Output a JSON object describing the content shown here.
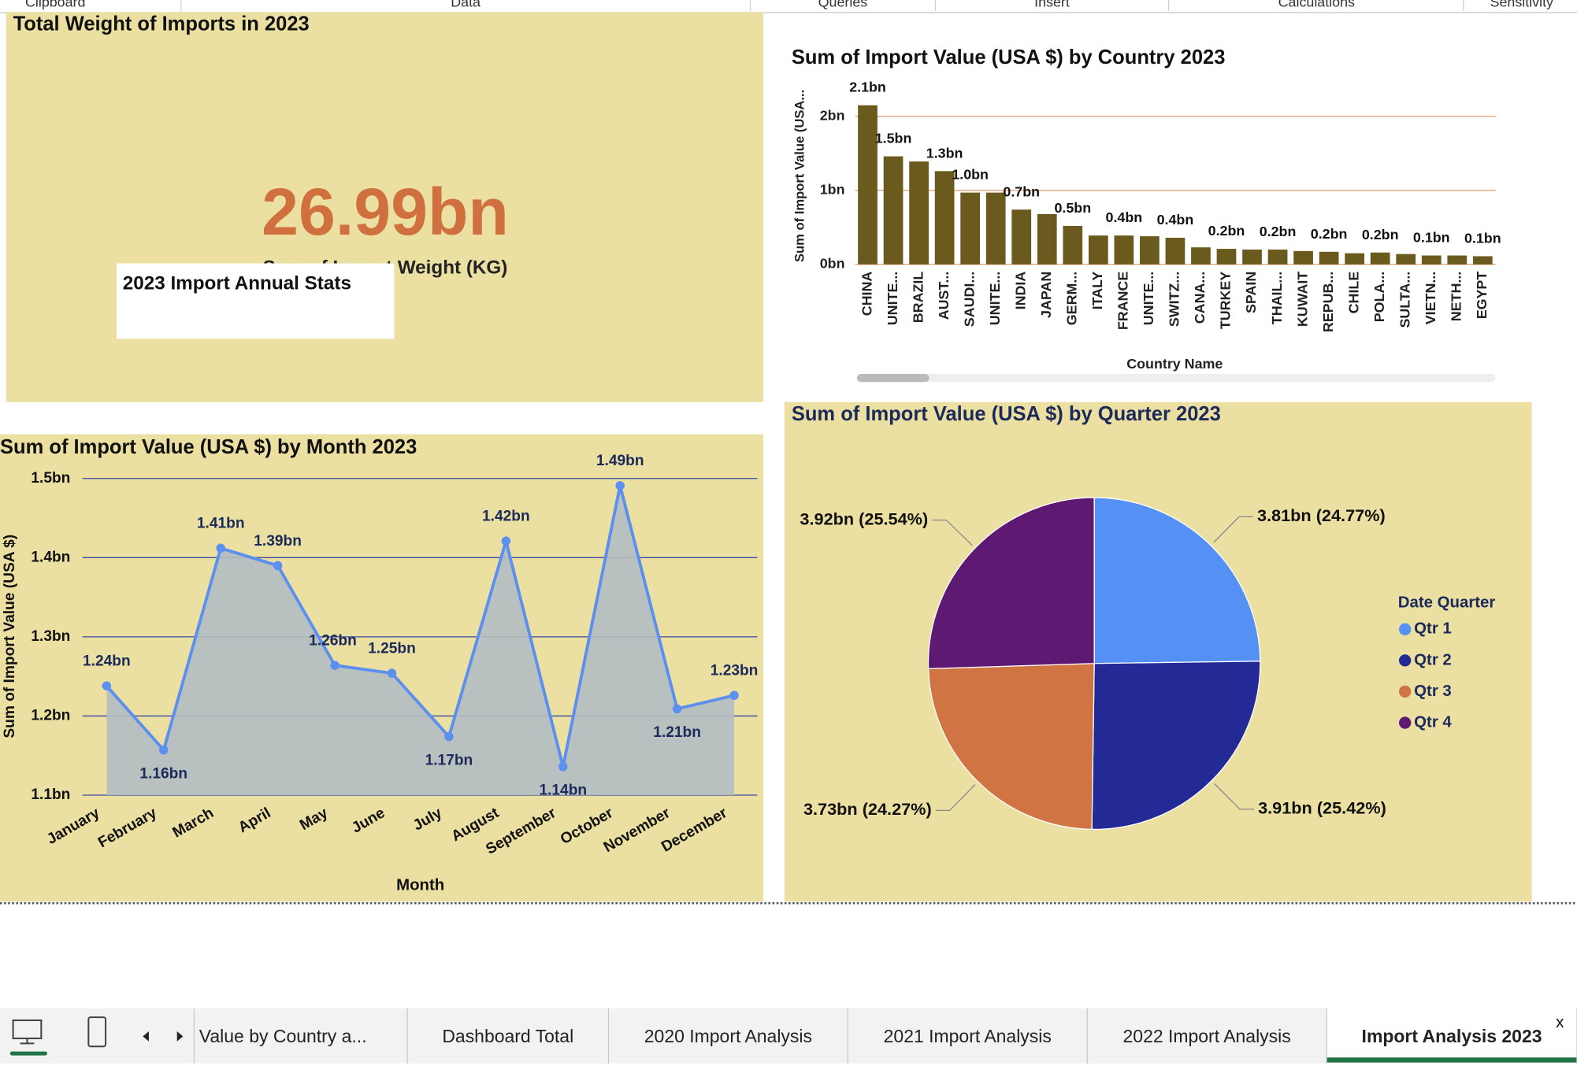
{
  "ribbon": [
    "Clipboard",
    "Data",
    "Queries",
    "Insert",
    "Calculations",
    "Sensitivity"
  ],
  "card": {
    "title": "Total Weight of Imports in 2023",
    "value": "26.99bn",
    "label": "Sum of Import Weight (KG)",
    "textbox": "2023 Import Annual Stats"
  },
  "chart_data": [
    {
      "type": "bar",
      "title": "Sum of Import Value (USA $) by Country 2023",
      "y_label": "Sum of Import Value (USA...",
      "x_label": "Country Name",
      "categories": [
        "CHINA",
        "UNITE...",
        "BRAZIL",
        "AUST...",
        "SAUDI...",
        "UNITE...",
        "INDIA",
        "JAPAN",
        "GERM...",
        "ITALY",
        "FRANCE",
        "UNITE...",
        "SWITZ...",
        "CANA...",
        "TURKEY",
        "SPAIN",
        "THAIL...",
        "KUWAIT",
        "REPUB...",
        "CHILE",
        "POLA...",
        "SULTA...",
        "VIETN...",
        "NETH...",
        "EGYPT"
      ],
      "values": [
        2.15,
        1.46,
        1.39,
        1.26,
        0.97,
        0.97,
        0.74,
        0.68,
        0.52,
        0.39,
        0.39,
        0.38,
        0.36,
        0.23,
        0.21,
        0.2,
        0.2,
        0.18,
        0.17,
        0.15,
        0.16,
        0.14,
        0.12,
        0.12,
        0.11
      ],
      "value_labels": [
        "2.1bn",
        "1.5bn",
        null,
        "1.3bn",
        "1.0bn",
        null,
        "0.7bn",
        null,
        "0.5bn",
        null,
        "0.4bn",
        null,
        "0.4bn",
        null,
        "0.2bn",
        null,
        "0.2bn",
        null,
        "0.2bn",
        null,
        "0.2bn",
        null,
        "0.1bn",
        null,
        "0.1bn"
      ],
      "color": "#6b5a1e",
      "grid": true,
      "ylim": [
        0,
        2.35
      ],
      "yticks": [
        {
          "value": 0,
          "label": "0bn"
        },
        {
          "value": 1,
          "label": "1bn"
        },
        {
          "value": 2,
          "label": "2bn"
        }
      ]
    },
    {
      "type": "area",
      "title": "Sum of Import Value (USA $) by Month 2023",
      "y_label": "Sum of Import Value (USA $)",
      "x_label": "Month",
      "categories": [
        "January",
        "February",
        "March",
        "April",
        "May",
        "June",
        "July",
        "August",
        "September",
        "October",
        "November",
        "December"
      ],
      "values": [
        1.238,
        1.157,
        1.412,
        1.39,
        1.264,
        1.254,
        1.174,
        1.421,
        1.136,
        1.491,
        1.209,
        1.226
      ],
      "value_labels": [
        "1.24bn",
        "1.16bn",
        "1.41bn",
        "1.39bn",
        "1.26bn",
        "1.25bn",
        "1.17bn",
        "1.42bn",
        "1.14bn",
        "1.49bn",
        "1.21bn",
        "1.23bn"
      ],
      "color": "#5b8ff0",
      "fill": "#b3bec2",
      "grid": true,
      "ylim": [
        1.1,
        1.5
      ],
      "yticks": [
        {
          "value": 1.1,
          "label": "1.1bn"
        },
        {
          "value": 1.2,
          "label": "1.2bn"
        },
        {
          "value": 1.3,
          "label": "1.3bn"
        },
        {
          "value": 1.4,
          "label": "1.4bn"
        },
        {
          "value": 1.5,
          "label": "1.5bn"
        }
      ]
    },
    {
      "type": "pie",
      "title": "Sum of Import Value (USA $) by Quarter 2023",
      "legend_title": "Date Quarter",
      "legend": "right",
      "categories": [
        "Qtr 1",
        "Qtr 2",
        "Qtr 3",
        "Qtr 4"
      ],
      "values": [
        3.81,
        3.91,
        3.73,
        3.92
      ],
      "value_labels": [
        "3.81bn (24.77%)",
        "3.91bn (25.42%)",
        "3.73bn (24.27%)",
        "3.92bn (25.54%)"
      ],
      "colors": [
        "#5590f5",
        "#232a96",
        "#d07444",
        "#5e1a72"
      ]
    }
  ],
  "tabs": [
    "Value by Country a...",
    "Dashboard Total",
    "2020 Import Analysis",
    "2021 Import Analysis",
    "2022 Import Analysis",
    "Import Analysis 2023"
  ],
  "close": "x"
}
